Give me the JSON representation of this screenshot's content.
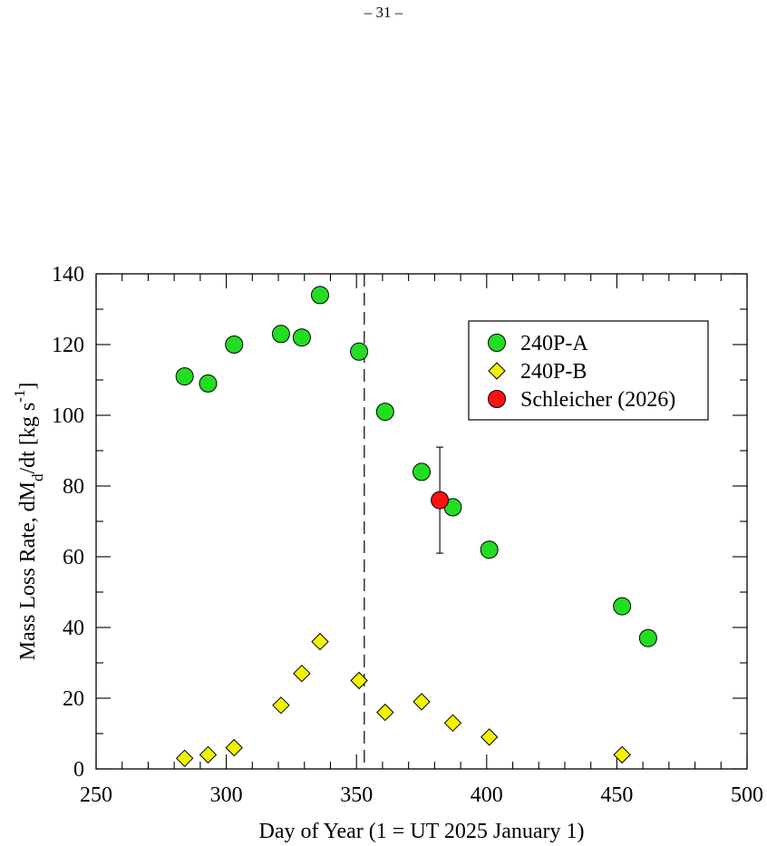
{
  "page": {
    "number": "– 31 –"
  },
  "chart_data": {
    "type": "scatter",
    "xlabel": "Day of Year (1 = UT 2025 January 1)",
    "ylabel": "Mass Loss Rate, dM",
    "ylabel_sub": "d",
    "ylabel_tail": "/dt [kg s",
    "ylabel_sup": "-1",
    "ylabel_end": "]",
    "xlim": [
      250,
      500
    ],
    "ylim": [
      0,
      140
    ],
    "xticks": [
      250,
      300,
      350,
      400,
      450,
      500
    ],
    "yticks": [
      0,
      20,
      40,
      60,
      80,
      100,
      120,
      140
    ],
    "x_minor_step": 10,
    "y_minor_step": 10,
    "grid": false,
    "legend_position": "top-right",
    "vertical_line": {
      "x": 353,
      "style": "dashed"
    },
    "series": [
      {
        "name": "240P-A",
        "marker": "circle",
        "color": "#22dd22",
        "points": [
          {
            "x": 284,
            "y": 111
          },
          {
            "x": 293,
            "y": 109
          },
          {
            "x": 303,
            "y": 120
          },
          {
            "x": 321,
            "y": 123
          },
          {
            "x": 329,
            "y": 122
          },
          {
            "x": 336,
            "y": 134
          },
          {
            "x": 351,
            "y": 118
          },
          {
            "x": 361,
            "y": 101
          },
          {
            "x": 375,
            "y": 84
          },
          {
            "x": 387,
            "y": 74
          },
          {
            "x": 401,
            "y": 62
          },
          {
            "x": 452,
            "y": 46
          },
          {
            "x": 462,
            "y": 37
          }
        ]
      },
      {
        "name": "240P-B",
        "marker": "diamond",
        "color": "#f2f200",
        "points": [
          {
            "x": 284,
            "y": 3
          },
          {
            "x": 293,
            "y": 4
          },
          {
            "x": 303,
            "y": 6
          },
          {
            "x": 321,
            "y": 18
          },
          {
            "x": 329,
            "y": 27
          },
          {
            "x": 336,
            "y": 36
          },
          {
            "x": 351,
            "y": 25
          },
          {
            "x": 361,
            "y": 16
          },
          {
            "x": 375,
            "y": 19
          },
          {
            "x": 387,
            "y": 13
          },
          {
            "x": 401,
            "y": 9
          },
          {
            "x": 452,
            "y": 4
          }
        ]
      },
      {
        "name": "Schleicher (2026)",
        "marker": "circle",
        "color": "#ff1111",
        "points": [
          {
            "x": 382,
            "y": 76,
            "yerr_low": 61,
            "yerr_high": 91
          }
        ]
      }
    ]
  }
}
